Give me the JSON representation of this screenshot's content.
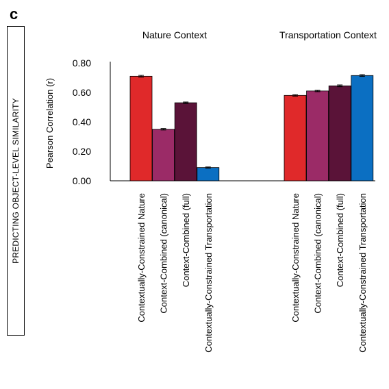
{
  "panel_letter": "c",
  "side_label": "PREDICTING  OBJECT-LEVEL  SIMILARITY",
  "chart_data": {
    "type": "bar",
    "ylabel": "Pearson Correlation (r)",
    "ylim": [
      0,
      0.8
    ],
    "yticks": [
      "0.00",
      "0.20",
      "0.40",
      "0.60",
      "0.80"
    ],
    "grid": false,
    "groups": [
      {
        "title": "Nature Context",
        "categories": [
          "Contextually-Constrained Nature",
          "Context-Combined (canonical)",
          "Context-Combined (full)",
          "Contextually-Constrained Transportation"
        ],
        "values": [
          0.71,
          0.35,
          0.53,
          0.09
        ],
        "errors": [
          0.006,
          0.005,
          0.005,
          0.004
        ]
      },
      {
        "title": "Transportation Context",
        "categories": [
          "Contextually-Constrained Nature",
          "Context-Combined (canonical)",
          "Context-Combined (full)",
          "Contextually-Constrained Transportation"
        ],
        "values": [
          0.58,
          0.61,
          0.645,
          0.715
        ],
        "errors": [
          0.005,
          0.005,
          0.006,
          0.006
        ]
      }
    ],
    "colors": [
      "#e0292a",
      "#9b2b67",
      "#5a1338",
      "#0b6fc2"
    ]
  }
}
